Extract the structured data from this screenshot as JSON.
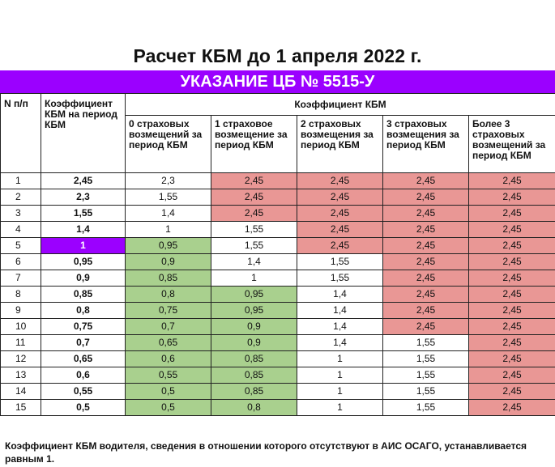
{
  "title": "Расчет КБМ до 1 апреля 2022 г.",
  "banner": "УКАЗАНИЕ ЦБ № 5515-У",
  "colors": {
    "accent": "#9b00ff",
    "green": "#a9d08e",
    "red": "#e99795"
  },
  "table": {
    "header": {
      "col_num": "N п/п",
      "col_kbm": "Коэффициент КБМ на период КБМ",
      "group": "Коэффициент КБМ",
      "sub": [
        "0 страховых возмещений за период КБМ",
        "1 страховое возмещение за период КБМ",
        "2 страховых возмещения за период КБМ",
        "3 страховых возмещения за период КБМ",
        "Более 3 страховых возмещений за период КБМ"
      ]
    },
    "rows": [
      {
        "n": "1",
        "kbm": "2,45",
        "v": [
          "2,3",
          "2,45",
          "2,45",
          "2,45",
          "2,45"
        ],
        "c": [
          "w",
          "r",
          "r",
          "r",
          "r"
        ]
      },
      {
        "n": "2",
        "kbm": "2,3",
        "v": [
          "1,55",
          "2,45",
          "2,45",
          "2,45",
          "2,45"
        ],
        "c": [
          "w",
          "r",
          "r",
          "r",
          "r"
        ]
      },
      {
        "n": "3",
        "kbm": "1,55",
        "v": [
          "1,4",
          "2,45",
          "2,45",
          "2,45",
          "2,45"
        ],
        "c": [
          "w",
          "r",
          "r",
          "r",
          "r"
        ]
      },
      {
        "n": "4",
        "kbm": "1,4",
        "v": [
          "1",
          "1,55",
          "2,45",
          "2,45",
          "2,45"
        ],
        "c": [
          "w",
          "w",
          "r",
          "r",
          "r"
        ]
      },
      {
        "n": "5",
        "kbm": "1",
        "v": [
          "0,95",
          "1,55",
          "2,45",
          "2,45",
          "2,45"
        ],
        "c": [
          "g",
          "w",
          "r",
          "r",
          "r"
        ]
      },
      {
        "n": "6",
        "kbm": "0,95",
        "v": [
          "0,9",
          "1,4",
          "1,55",
          "2,45",
          "2,45"
        ],
        "c": [
          "g",
          "w",
          "w",
          "r",
          "r"
        ]
      },
      {
        "n": "7",
        "kbm": "0,9",
        "v": [
          "0,85",
          "1",
          "1,55",
          "2,45",
          "2,45"
        ],
        "c": [
          "g",
          "w",
          "w",
          "r",
          "r"
        ]
      },
      {
        "n": "8",
        "kbm": "0,85",
        "v": [
          "0,8",
          "0,95",
          "1,4",
          "2,45",
          "2,45"
        ],
        "c": [
          "g",
          "g",
          "w",
          "r",
          "r"
        ]
      },
      {
        "n": "9",
        "kbm": "0,8",
        "v": [
          "0,75",
          "0,95",
          "1,4",
          "2,45",
          "2,45"
        ],
        "c": [
          "g",
          "g",
          "w",
          "r",
          "r"
        ]
      },
      {
        "n": "10",
        "kbm": "0,75",
        "v": [
          "0,7",
          "0,9",
          "1,4",
          "2,45",
          "2,45"
        ],
        "c": [
          "g",
          "g",
          "w",
          "r",
          "r"
        ]
      },
      {
        "n": "11",
        "kbm": "0,7",
        "v": [
          "0,65",
          "0,9",
          "1,4",
          "1,55",
          "2,45"
        ],
        "c": [
          "g",
          "g",
          "w",
          "w",
          "r"
        ]
      },
      {
        "n": "12",
        "kbm": "0,65",
        "v": [
          "0,6",
          "0,85",
          "1",
          "1,55",
          "2,45"
        ],
        "c": [
          "g",
          "g",
          "w",
          "w",
          "r"
        ]
      },
      {
        "n": "13",
        "kbm": "0,6",
        "v": [
          "0,55",
          "0,85",
          "1",
          "1,55",
          "2,45"
        ],
        "c": [
          "g",
          "g",
          "w",
          "w",
          "r"
        ]
      },
      {
        "n": "14",
        "kbm": "0,55",
        "v": [
          "0,5",
          "0,85",
          "1",
          "1,55",
          "2,45"
        ],
        "c": [
          "g",
          "g",
          "w",
          "w",
          "r"
        ]
      },
      {
        "n": "15",
        "kbm": "0,5",
        "v": [
          "0,5",
          "0,8",
          "1",
          "1,55",
          "2,45"
        ],
        "c": [
          "g",
          "g",
          "w",
          "w",
          "r"
        ]
      }
    ],
    "highlight_row": "5"
  },
  "note": "Коэффициент КБМ водителя, сведения в отношении которого отсутствуют в АИС ОСАГО, устанавливается равным 1."
}
